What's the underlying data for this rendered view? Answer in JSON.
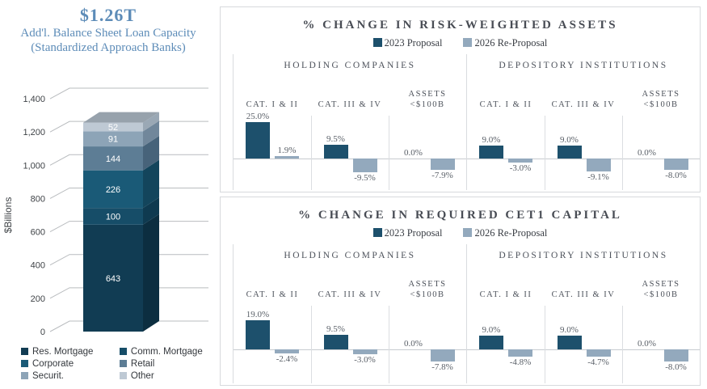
{
  "chart_data": [
    {
      "type": "bar",
      "subtype": "3d-stacked-column",
      "title": "$1.26T",
      "subtitle": [
        "Add'l. Balance Sheet Loan Capacity",
        "(Standardized Approach Banks)"
      ],
      "ylabel": "$Billions",
      "ylim": [
        0,
        1400
      ],
      "yticks": [
        "0",
        "200",
        "400",
        "600",
        "800",
        "1,000",
        "1,200",
        "1,400"
      ],
      "total": 1256,
      "stack": [
        {
          "name": "Res. Mortgage",
          "value": 643,
          "color": "#113C53",
          "side": "#0C2E40"
        },
        {
          "name": "Comm. Mortgage",
          "value": 100,
          "color": "#164D68",
          "side": "#0F3A50"
        },
        {
          "name": "Corporate",
          "value": 226,
          "color": "#1A5A77",
          "side": "#13455C"
        },
        {
          "name": "Retail",
          "value": 144,
          "color": "#5D7D95",
          "side": "#47637A"
        },
        {
          "name": "Securit.",
          "value": 91,
          "color": "#8DA4B7",
          "side": "#71879B"
        },
        {
          "name": "Other",
          "value": 52,
          "color": "#BEC9D4",
          "side": "#9AA8B5"
        }
      ],
      "top_face_color": "#97A2AC",
      "grid": true,
      "legend_position": "bottom"
    },
    {
      "type": "bar",
      "title": "% CHANGE IN RISK-WEIGHTED ASSETS",
      "legend": [
        "2023 Proposal",
        "2026 Re-Proposal"
      ],
      "series_colors": [
        "#1D506C",
        "#93A9BD"
      ],
      "grid": false,
      "legend_position": "top",
      "groups": [
        {
          "name": "HOLDING COMPANIES",
          "categories": [
            {
              "label": [
                "CAT. I & II"
              ],
              "values": [
                25.0,
                1.9
              ],
              "labels": [
                "25.0%",
                "1.9%"
              ]
            },
            {
              "label": [
                "CAT. III & IV"
              ],
              "values": [
                9.5,
                -9.5
              ],
              "labels": [
                "9.5%",
                "-9.5%"
              ]
            },
            {
              "label": [
                "ASSETS",
                "<$100B"
              ],
              "values": [
                0.0,
                -7.9
              ],
              "labels": [
                "0.0%",
                "-7.9%"
              ]
            }
          ]
        },
        {
          "name": "DEPOSITORY INSTITUTIONS",
          "categories": [
            {
              "label": [
                "CAT. I & II"
              ],
              "values": [
                9.0,
                -3.0
              ],
              "labels": [
                "9.0%",
                "-3.0%"
              ]
            },
            {
              "label": [
                "CAT. III & IV"
              ],
              "values": [
                9.0,
                -9.1
              ],
              "labels": [
                "9.0%",
                "-9.1%"
              ]
            },
            {
              "label": [
                "ASSETS",
                "<$100B"
              ],
              "values": [
                0.0,
                -8.0
              ],
              "labels": [
                "0.0%",
                "-8.0%"
              ]
            }
          ]
        }
      ]
    },
    {
      "type": "bar",
      "title": "% CHANGE IN REQUIRED CET1 CAPITAL",
      "legend": [
        "2023 Proposal",
        "2026 Re-Proposal"
      ],
      "series_colors": [
        "#1D506C",
        "#93A9BD"
      ],
      "grid": false,
      "legend_position": "top",
      "groups": [
        {
          "name": "HOLDING COMPANIES",
          "categories": [
            {
              "label": [
                "CAT. I & II"
              ],
              "values": [
                19.0,
                -2.4
              ],
              "labels": [
                "19.0%",
                "-2.4%"
              ]
            },
            {
              "label": [
                "CAT. III & IV"
              ],
              "values": [
                9.5,
                -3.0
              ],
              "labels": [
                "9.5%",
                "-3.0%"
              ]
            },
            {
              "label": [
                "ASSETS",
                "<$100B"
              ],
              "values": [
                0.0,
                -7.8
              ],
              "labels": [
                "0.0%",
                "-7.8%"
              ]
            }
          ]
        },
        {
          "name": "DEPOSITORY INSTITUTIONS",
          "categories": [
            {
              "label": [
                "CAT. I & II"
              ],
              "values": [
                9.0,
                -4.8
              ],
              "labels": [
                "9.0%",
                "-4.8%"
              ]
            },
            {
              "label": [
                "CAT. III & IV"
              ],
              "values": [
                9.0,
                -4.7
              ],
              "labels": [
                "9.0%",
                "-4.7%"
              ]
            },
            {
              "label": [
                "ASSETS",
                "<$100B"
              ],
              "values": [
                0.0,
                -8.0
              ],
              "labels": [
                "0.0%",
                "-8.0%"
              ]
            }
          ]
        }
      ]
    }
  ]
}
